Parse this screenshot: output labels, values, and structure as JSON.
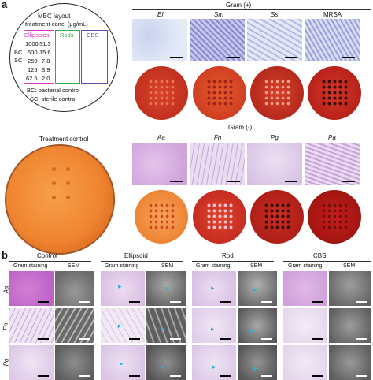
{
  "panel_a": {
    "letter": "a",
    "layout_box": {
      "title_line1": "MBC layout",
      "title_line2": "treatment conc. (μg/mL)",
      "col_headers": [
        "Ellipsoids",
        "Rods",
        "CBS"
      ],
      "row_labels": [
        "BC",
        "SC"
      ],
      "rows": [
        [
          "1000",
          "31.3"
        ],
        [
          "500",
          "15.6"
        ],
        [
          "250",
          "7.8"
        ],
        [
          "125",
          "3.9"
        ],
        [
          "62.5",
          "2.0"
        ]
      ],
      "legend_bc": "BC: bacterial control",
      "legend_sc": "SC: sterile control"
    },
    "treatment_control_label": "Treatment control",
    "gram_pos": {
      "title": "Gram (+)",
      "species": [
        "Ef",
        "Sm",
        "Ss",
        "MRSA"
      ]
    },
    "gram_neg": {
      "title": "Gram (-)",
      "species": [
        "Aa",
        "Fn",
        "Pg",
        "Pa"
      ]
    }
  },
  "panel_b": {
    "letter": "b",
    "groups": [
      {
        "title": "Control"
      },
      {
        "title": "Ellipsoid"
      },
      {
        "title": "Rod"
      },
      {
        "title": "CBS"
      }
    ],
    "sub_gram": "Gram staining",
    "sub_sem": "SEM",
    "rows": [
      "Aa",
      "Fn",
      "Pg"
    ]
  },
  "colors": {
    "ellipsoid_box": "#d63bc6",
    "rod_box": "#3aa94a",
    "cbs_box": "#5a4fb0",
    "plate_orange": "#f07a2a",
    "plate_red": "#c8261e",
    "stain_purple": "#c9a6da",
    "sem_gray": "#7d7d7d"
  }
}
